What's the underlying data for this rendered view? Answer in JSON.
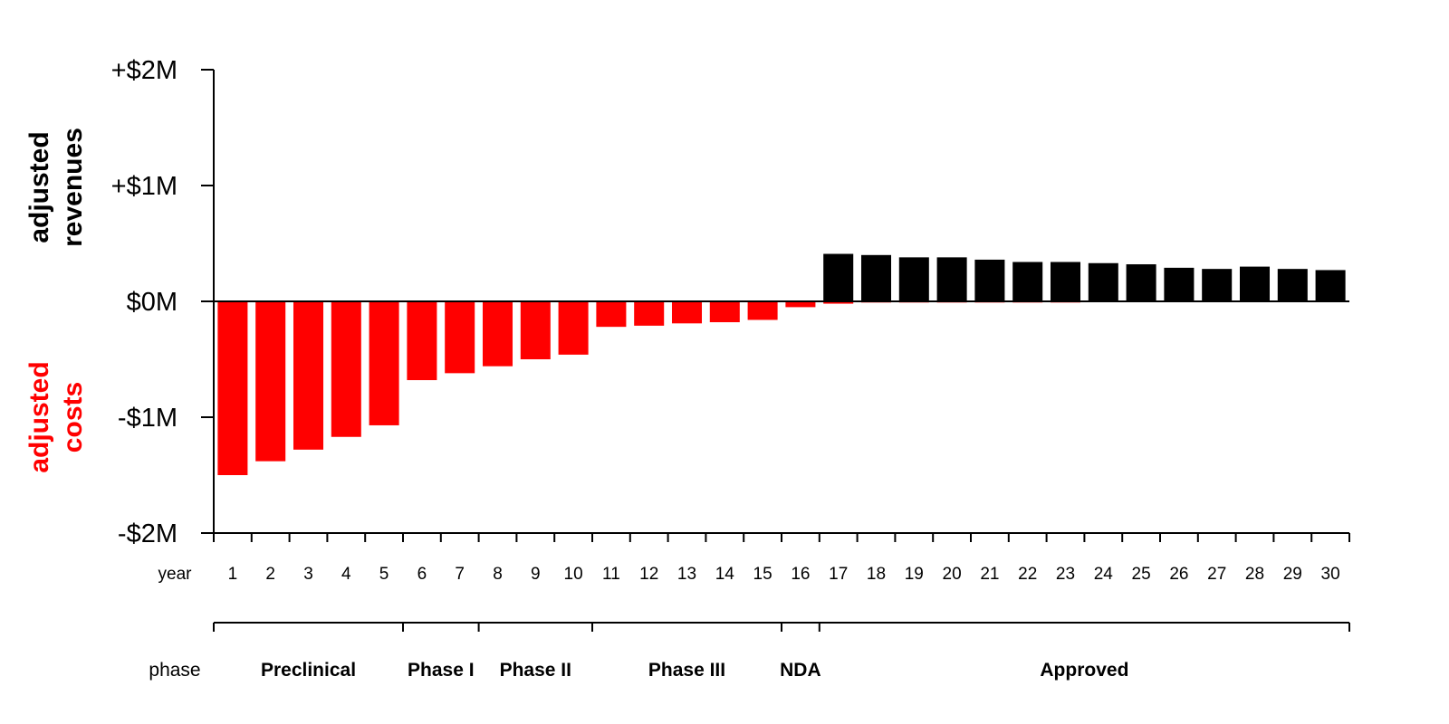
{
  "chart_data": {
    "type": "bar",
    "x_row_label": "year",
    "categories": [
      "1",
      "2",
      "3",
      "4",
      "5",
      "6",
      "7",
      "8",
      "9",
      "10",
      "11",
      "12",
      "13",
      "14",
      "15",
      "16",
      "17",
      "18",
      "19",
      "20",
      "21",
      "22",
      "23",
      "24",
      "25",
      "26",
      "27",
      "28",
      "29",
      "30"
    ],
    "costs": [
      -1.5,
      -1.38,
      -1.28,
      -1.17,
      -1.07,
      -0.68,
      -0.62,
      -0.56,
      -0.5,
      -0.46,
      -0.22,
      -0.21,
      -0.19,
      -0.18,
      -0.16,
      -0.05,
      -0.02,
      -0.01,
      -0.01,
      -0.01,
      -0.01,
      -0.01,
      -0.01,
      0,
      0,
      0,
      0,
      0,
      0,
      0
    ],
    "revenues": [
      0,
      0,
      0,
      0,
      0,
      0,
      0,
      0,
      0,
      0,
      0,
      0,
      0,
      0,
      0,
      0,
      0.41,
      0.4,
      0.38,
      0.38,
      0.36,
      0.34,
      0.34,
      0.33,
      0.32,
      0.29,
      0.28,
      0.3,
      0.28,
      0.27
    ],
    "ylim": [
      -2,
      2
    ],
    "y_ticks": [
      {
        "value": 2,
        "label": "+$2M"
      },
      {
        "value": 1,
        "label": "+$1M"
      },
      {
        "value": 0,
        "label": "$0M"
      },
      {
        "value": -1,
        "label": "-$1M"
      },
      {
        "value": -2,
        "label": "-$2M"
      }
    ],
    "label_positive": [
      "adjusted",
      "revenues"
    ],
    "label_negative": [
      "adjusted",
      "costs"
    ],
    "phase_row_label": "phase",
    "phases": [
      {
        "name": "Preclinical",
        "start_year": 1,
        "end_year": 5
      },
      {
        "name": "Phase I",
        "start_year": 6,
        "end_year": 7
      },
      {
        "name": "Phase II",
        "start_year": 8,
        "end_year": 10
      },
      {
        "name": "Phase III",
        "start_year": 11,
        "end_year": 15
      },
      {
        "name": "NDA",
        "start_year": 16,
        "end_year": 16
      },
      {
        "name": "Approved",
        "start_year": 17,
        "end_year": 30
      }
    ],
    "colors": {
      "costs": "#ff0000",
      "revenues": "#000000",
      "axis": "#000000"
    }
  }
}
